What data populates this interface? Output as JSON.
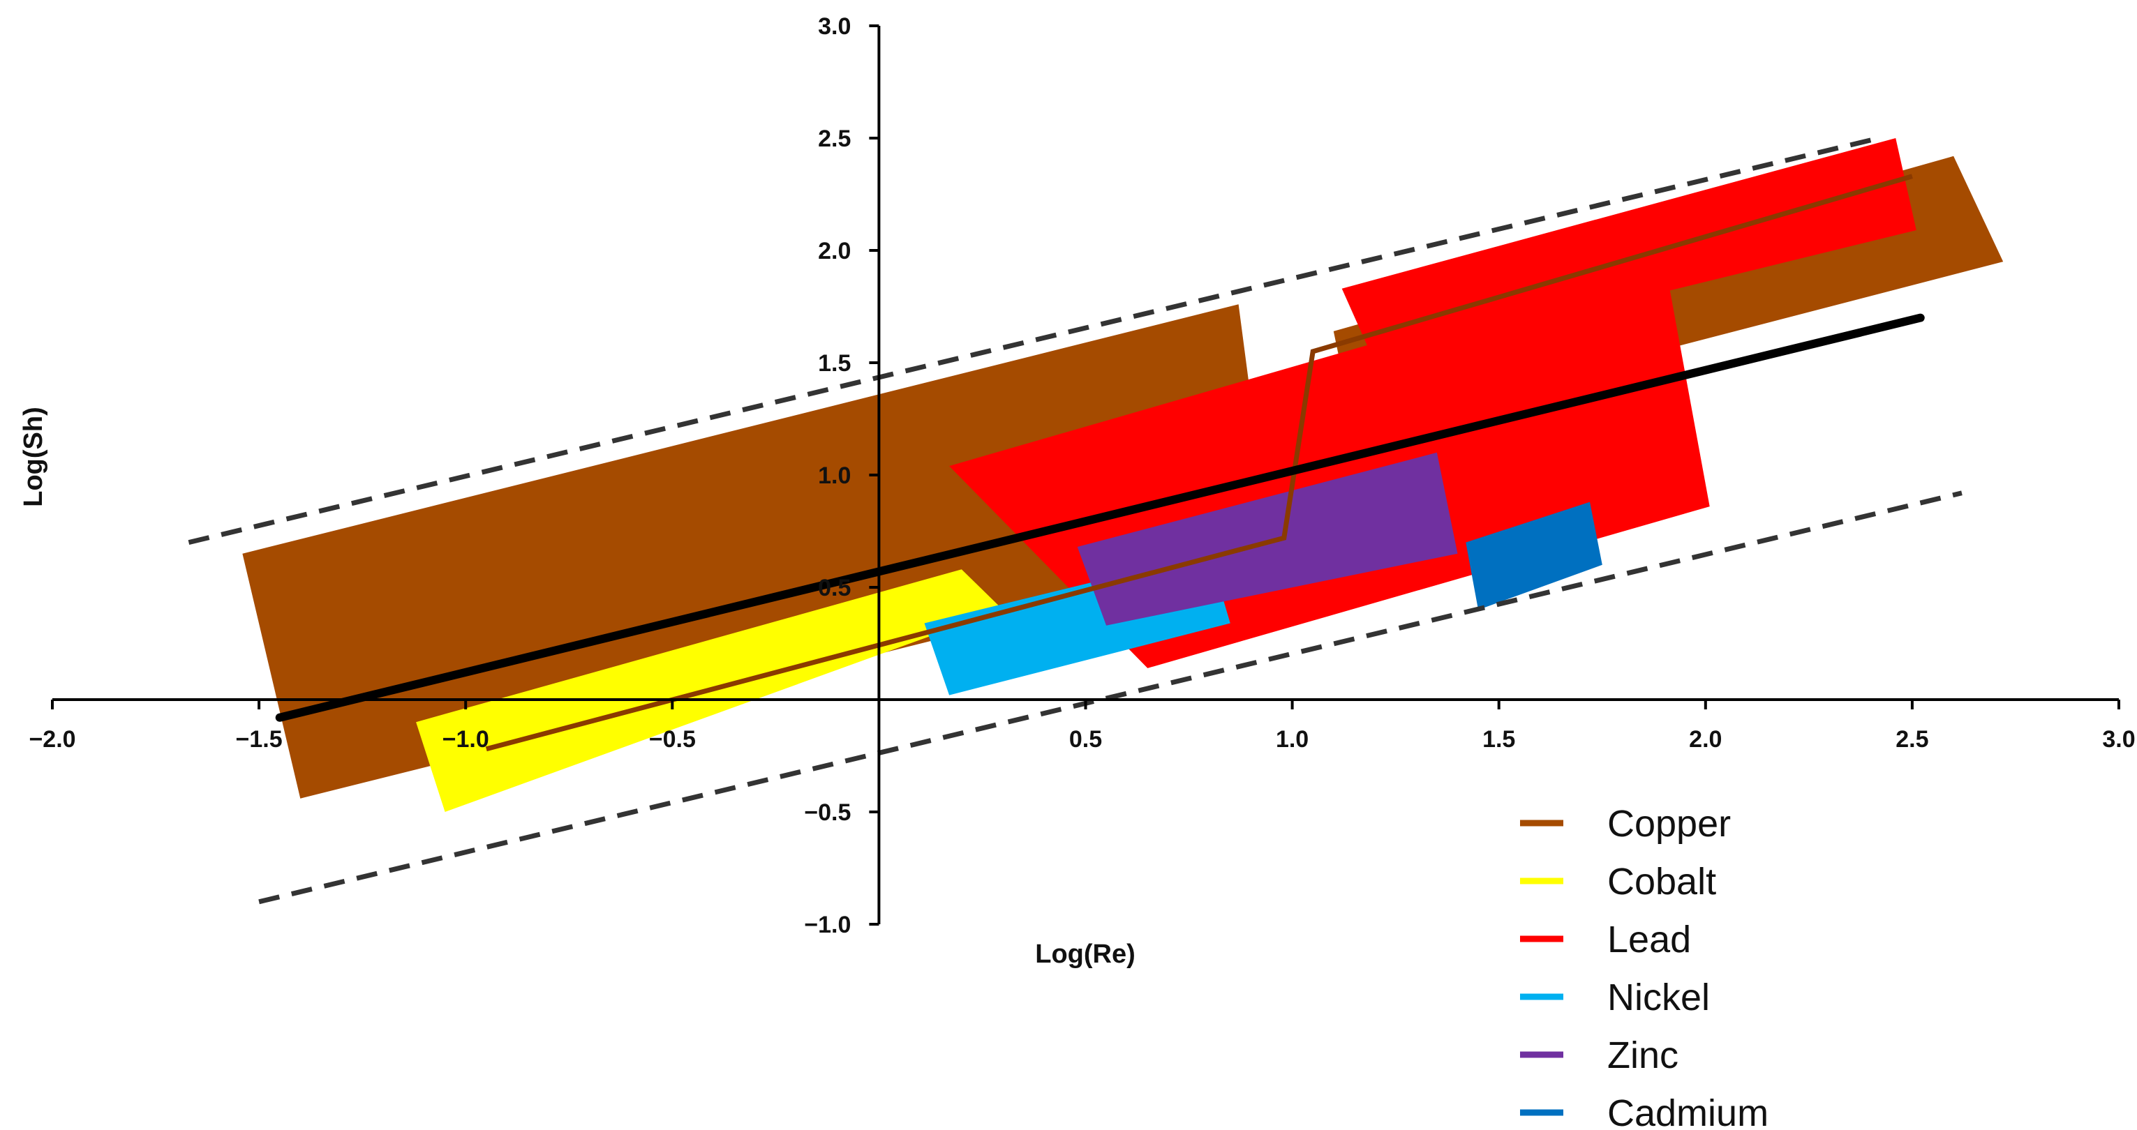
{
  "chart_data": {
    "type": "area",
    "title": "",
    "xlabel": "Log(Re)",
    "ylabel": "Log(Sh)",
    "xlim": [
      -2.0,
      3.0
    ],
    "ylim": [
      -1.0,
      3.0
    ],
    "x_ticks": [
      "−2.0",
      "−1.5",
      "−1.0",
      "−0.5",
      "0.5",
      "1.0",
      "1.5",
      "2.0",
      "2.5",
      "3.0"
    ],
    "x_tick_values": [
      -2.0,
      -1.5,
      -1.0,
      -0.5,
      0.5,
      1.0,
      1.5,
      2.0,
      2.5,
      3.0
    ],
    "y_ticks": [
      "3.0",
      "2.5",
      "2.0",
      "1.5",
      "1.0",
      "0.5",
      "−0.5",
      "−1.0"
    ],
    "y_tick_values": [
      3.0,
      2.5,
      2.0,
      1.5,
      1.0,
      0.5,
      -0.5,
      -1.0
    ],
    "grid": false,
    "legend_position": "bottom-right",
    "series": [
      {
        "name": "Copper",
        "color": "#A54B00",
        "regions": [
          [
            [
              -1.54,
              0.65
            ],
            [
              0.87,
              1.76
            ],
            [
              0.95,
              0.64
            ],
            [
              -1.4,
              -0.44
            ]
          ],
          [
            [
              1.1,
              1.64
            ],
            [
              2.6,
              2.42
            ],
            [
              2.72,
              1.95
            ],
            [
              1.15,
              1.2
            ]
          ]
        ],
        "center_line": [
          [
            -0.95,
            -0.22
          ],
          [
            0.98,
            0.72
          ],
          [
            1.05,
            1.55
          ],
          [
            2.5,
            2.33
          ]
        ]
      },
      {
        "name": "Cobalt",
        "color": "#FFFF00",
        "regions": [
          [
            [
              -1.12,
              -0.1
            ],
            [
              0.2,
              0.58
            ],
            [
              0.3,
              0.4
            ],
            [
              -1.05,
              -0.5
            ]
          ]
        ],
        "center_line": []
      },
      {
        "name": "Lead",
        "color": "#FF0000",
        "regions": [
          [
            [
              0.17,
              1.04
            ],
            [
              1.9,
              1.96
            ],
            [
              2.01,
              0.86
            ],
            [
              0.65,
              0.14
            ]
          ],
          [
            [
              1.12,
              1.83
            ],
            [
              2.46,
              2.5
            ],
            [
              2.51,
              2.09
            ],
            [
              1.2,
              1.5
            ]
          ]
        ],
        "center_line": []
      },
      {
        "name": "Nickel",
        "color": "#00B0F0",
        "regions": [
          [
            [
              0.11,
              0.34
            ],
            [
              0.8,
              0.65
            ],
            [
              0.85,
              0.34
            ],
            [
              0.17,
              0.02
            ]
          ]
        ],
        "center_line": []
      },
      {
        "name": "Zinc",
        "color": "#7030A0",
        "regions": [
          [
            [
              0.48,
              0.68
            ],
            [
              1.35,
              1.1
            ],
            [
              1.4,
              0.65
            ],
            [
              0.55,
              0.33
            ]
          ]
        ],
        "center_line": []
      },
      {
        "name": "Cadmium",
        "color": "#0070C0",
        "regions": [
          [
            [
              1.42,
              0.7
            ],
            [
              1.72,
              0.88
            ],
            [
              1.75,
              0.6
            ],
            [
              1.45,
              0.4
            ]
          ]
        ],
        "center_line": []
      }
    ],
    "fit_line": {
      "color": "#000000",
      "points": [
        [
          -1.45,
          -0.08
        ],
        [
          2.52,
          1.7
        ]
      ]
    },
    "bound_lines": [
      {
        "color": "#333333",
        "points": [
          [
            -1.67,
            0.7
          ],
          [
            2.42,
            2.5
          ]
        ]
      },
      {
        "color": "#333333",
        "points": [
          [
            -1.5,
            -0.9
          ],
          [
            2.62,
            0.92
          ]
        ]
      }
    ]
  }
}
